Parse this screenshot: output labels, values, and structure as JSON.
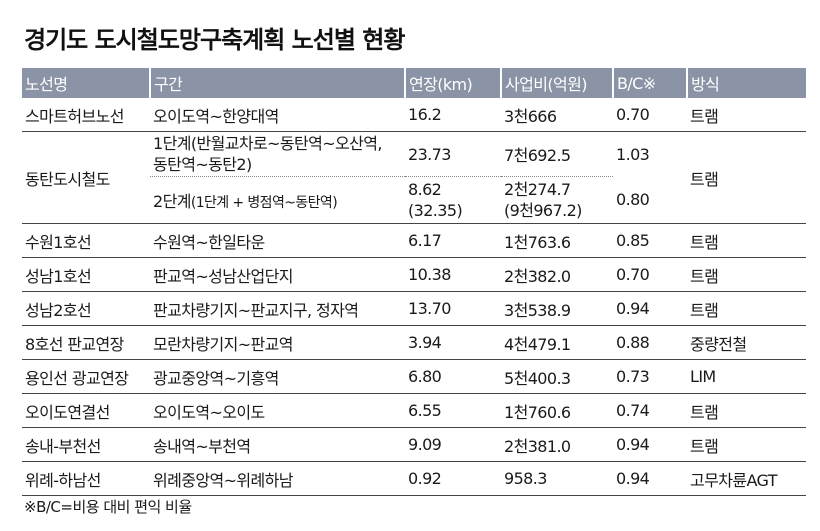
{
  "title": "경기도 도시철도망구축계획 노선별 현황",
  "headers": [
    "노선명",
    "구간",
    "연장(km)",
    "사업비(억원)",
    "B/C※",
    "방식"
  ],
  "dongtan": {
    "name": "동탄도시철도",
    "stage1": {
      "section_line1": "1단계(반월교차로~동탄역~오산역,",
      "section_line2": "동탄역~동탄2)",
      "length": "23.73",
      "cost": "7천692.5",
      "bc": "1.03"
    },
    "stage2": {
      "section_prefix": "2단계",
      "section_detail": "(1단계 + 병점역~동탄역)",
      "length_line1": "8.62",
      "length_line2": "(32.35)",
      "cost_line1": "2천274.7",
      "cost_line2": "(9천967.2)",
      "bc": "0.80"
    },
    "method": "트램"
  },
  "rows": [
    {
      "name": "스마트허브노선",
      "section": "오이도역~한양대역",
      "length": "16.2",
      "cost": "3천666",
      "bc": "0.70",
      "method": "트램"
    },
    {
      "name": "수원1호선",
      "section": "수원역~한일타운",
      "length": "6.17",
      "cost": "1천763.6",
      "bc": "0.85",
      "method": "트램"
    },
    {
      "name": "성남1호선",
      "section": "판교역~성남산업단지",
      "length": "10.38",
      "cost": "2천382.0",
      "bc": "0.70",
      "method": "트램"
    },
    {
      "name": "성남2호선",
      "section": "판교차량기지~판교지구, 정자역",
      "length": "13.70",
      "cost": "3천538.9",
      "bc": "0.94",
      "method": "트램"
    },
    {
      "name": "8호선 판교연장",
      "section": "모란차량기지~판교역",
      "length": "3.94",
      "cost": "4천479.1",
      "bc": "0.88",
      "method": "중량전철"
    },
    {
      "name": "용인선 광교연장",
      "section": "광교중앙역~기흥역",
      "length": "6.80",
      "cost": "5천400.3",
      "bc": "0.73",
      "method": "LIM"
    },
    {
      "name": "오이도연결선",
      "section": "오이도역~오이도",
      "length": "6.55",
      "cost": "1천760.6",
      "bc": "0.74",
      "method": "트램"
    },
    {
      "name": "송내-부천선",
      "section": "송내역~부천역",
      "length": "9.09",
      "cost": "2천381.0",
      "bc": "0.94",
      "method": "트램"
    },
    {
      "name": "위례-하남선",
      "section": "위례중앙역~위례하남",
      "length": "0.92",
      "cost": "958.3",
      "bc": "0.94",
      "method": "고무차륜AGT"
    }
  ],
  "footnote": "※B/C=비용 대비 편익 비율"
}
